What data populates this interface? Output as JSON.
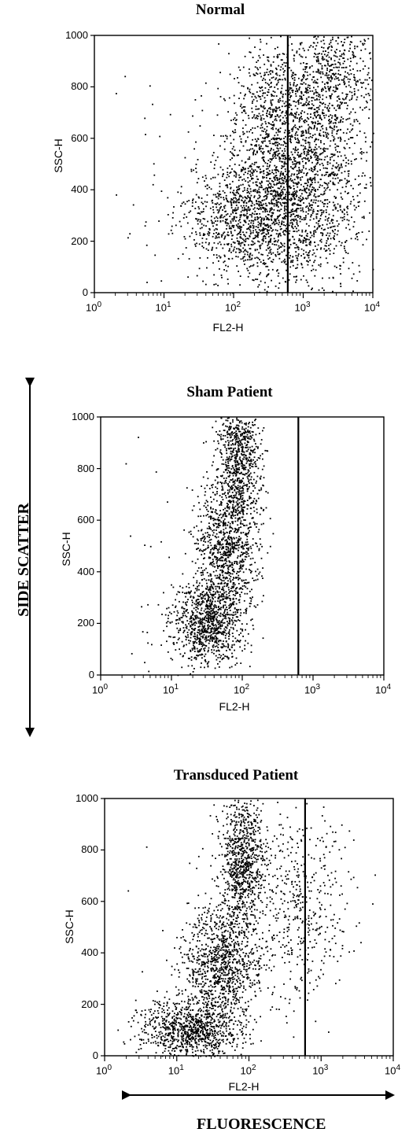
{
  "chart_data": [
    {
      "type": "scatter",
      "title": "Normal",
      "xlabel": "FL2-H",
      "ylabel": "SSC-H",
      "xscale": "log",
      "xlim": [
        1,
        10000
      ],
      "ylim": [
        0,
        1000
      ],
      "x_ticks": [
        "10",
        "10",
        "10",
        "10",
        "10"
      ],
      "x_tick_exponents": [
        "0",
        "1",
        "2",
        "3",
        "4"
      ],
      "y_ticks": [
        "0",
        "200",
        "400",
        "600",
        "800",
        "1000"
      ],
      "gate_line_x": 600,
      "grid": false,
      "clusters": [
        {
          "x_center": 200,
          "y_center": 300,
          "x_spread_decades": 0.5,
          "y_spread": 120,
          "count": 1400
        },
        {
          "x_center": 400,
          "y_center": 650,
          "x_spread_decades": 0.35,
          "y_spread": 180,
          "count": 900
        },
        {
          "x_center": 1500,
          "y_center": 450,
          "x_spread_decades": 0.4,
          "y_spread": 220,
          "count": 1100
        },
        {
          "x_center": 2500,
          "y_center": 850,
          "x_spread_decades": 0.3,
          "y_spread": 120,
          "count": 500
        }
      ]
    },
    {
      "type": "scatter",
      "title": "Sham Patient",
      "xlabel": "FL2-H",
      "ylabel": "SSC-H",
      "xscale": "log",
      "xlim": [
        1,
        10000
      ],
      "ylim": [
        0,
        1000
      ],
      "x_ticks": [
        "10",
        "10",
        "10",
        "10",
        "10"
      ],
      "x_tick_exponents": [
        "0",
        "1",
        "2",
        "3",
        "4"
      ],
      "y_ticks": [
        "0",
        "200",
        "400",
        "600",
        "800",
        "1000"
      ],
      "gate_line_x": 620,
      "grid": false,
      "clusters": [
        {
          "x_center": 30,
          "y_center": 200,
          "x_spread_decades": 0.25,
          "y_spread": 80,
          "count": 900
        },
        {
          "x_center": 60,
          "y_center": 500,
          "x_spread_decades": 0.22,
          "y_spread": 150,
          "count": 1100
        },
        {
          "x_center": 90,
          "y_center": 850,
          "x_spread_decades": 0.15,
          "y_spread": 120,
          "count": 700
        }
      ]
    },
    {
      "type": "scatter",
      "title": "Transduced Patient",
      "xlabel": "FL2-H",
      "ylabel": "SSC-H",
      "xscale": "log",
      "xlim": [
        1,
        10000
      ],
      "ylim": [
        0,
        1000
      ],
      "x_ticks": [
        "10",
        "10",
        "10",
        "10",
        "10"
      ],
      "x_tick_exponents": [
        "0",
        "1",
        "2",
        "3",
        "4"
      ],
      "y_ticks": [
        "0",
        "200",
        "400",
        "600",
        "800",
        "1000"
      ],
      "gate_line_x": 600,
      "grid": false,
      "clusters": [
        {
          "x_center": 15,
          "y_center": 100,
          "x_spread_decades": 0.35,
          "y_spread": 60,
          "count": 900
        },
        {
          "x_center": 40,
          "y_center": 350,
          "x_spread_decades": 0.25,
          "y_spread": 120,
          "count": 1000
        },
        {
          "x_center": 80,
          "y_center": 750,
          "x_spread_decades": 0.15,
          "y_spread": 150,
          "count": 900
        },
        {
          "x_center": 500,
          "y_center": 600,
          "x_spread_decades": 0.35,
          "y_spread": 200,
          "count": 500
        }
      ]
    }
  ],
  "side_label": "SIDE SCATTER",
  "bottom_label": "FLUORESCENCE",
  "colors": {
    "ink": "#000000",
    "background": "#ffffff"
  }
}
